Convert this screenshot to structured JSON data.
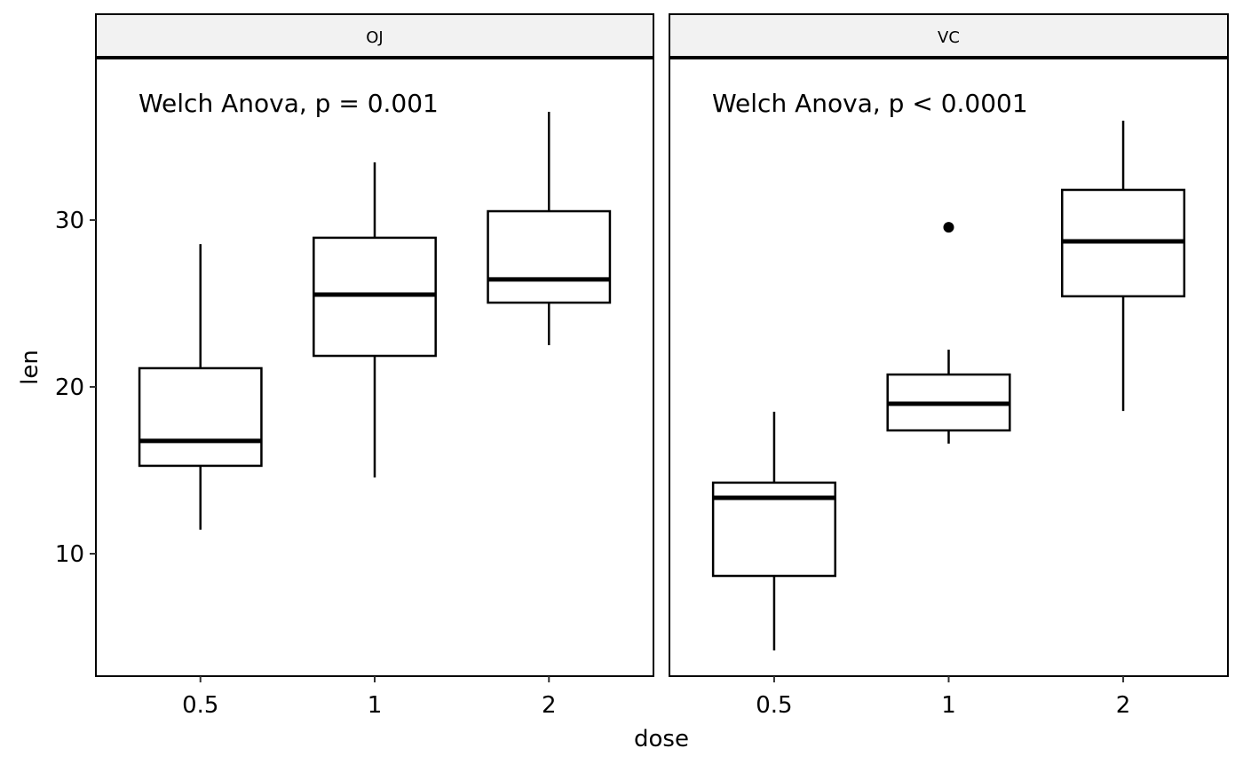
{
  "chart_data": {
    "type": "boxplot",
    "xlabel": "dose",
    "ylabel": "len",
    "categories": [
      "0.5",
      "1",
      "2"
    ],
    "ylim": [
      2.66,
      39.68
    ],
    "yticks": [
      10,
      20,
      30
    ],
    "ytick_labels": [
      "10",
      "20",
      "30"
    ],
    "grid": false,
    "panels": [
      {
        "strip": "OJ",
        "annotation": "Welch Anova, p = 0.001",
        "boxes": [
          {
            "x": "0.5",
            "lower": 11.44,
            "q1": 15.27,
            "median": 16.76,
            "q3": 21.12,
            "upper": 28.56,
            "outliers": []
          },
          {
            "x": "1",
            "lower": 14.57,
            "q1": 21.86,
            "median": 25.53,
            "q3": 28.94,
            "upper": 33.46,
            "outliers": []
          },
          {
            "x": "2",
            "lower": 22.5,
            "q1": 25.05,
            "median": 26.44,
            "q3": 30.53,
            "upper": 36.49,
            "outliers": []
          }
        ]
      },
      {
        "strip": "VC",
        "annotation": "Welch Anova, p < 0.0001",
        "boxes": [
          {
            "x": "0.5",
            "lower": 4.2,
            "q1": 8.67,
            "median": 13.35,
            "q3": 14.26,
            "upper": 18.51,
            "outliers": []
          },
          {
            "x": "1",
            "lower": 16.6,
            "q1": 17.39,
            "median": 18.99,
            "q3": 20.74,
            "upper": 22.23,
            "outliers": [
              29.57
            ]
          },
          {
            "x": "2",
            "lower": 18.56,
            "q1": 25.43,
            "median": 28.72,
            "q3": 31.81,
            "upper": 35.96,
            "outliers": []
          }
        ]
      }
    ]
  }
}
